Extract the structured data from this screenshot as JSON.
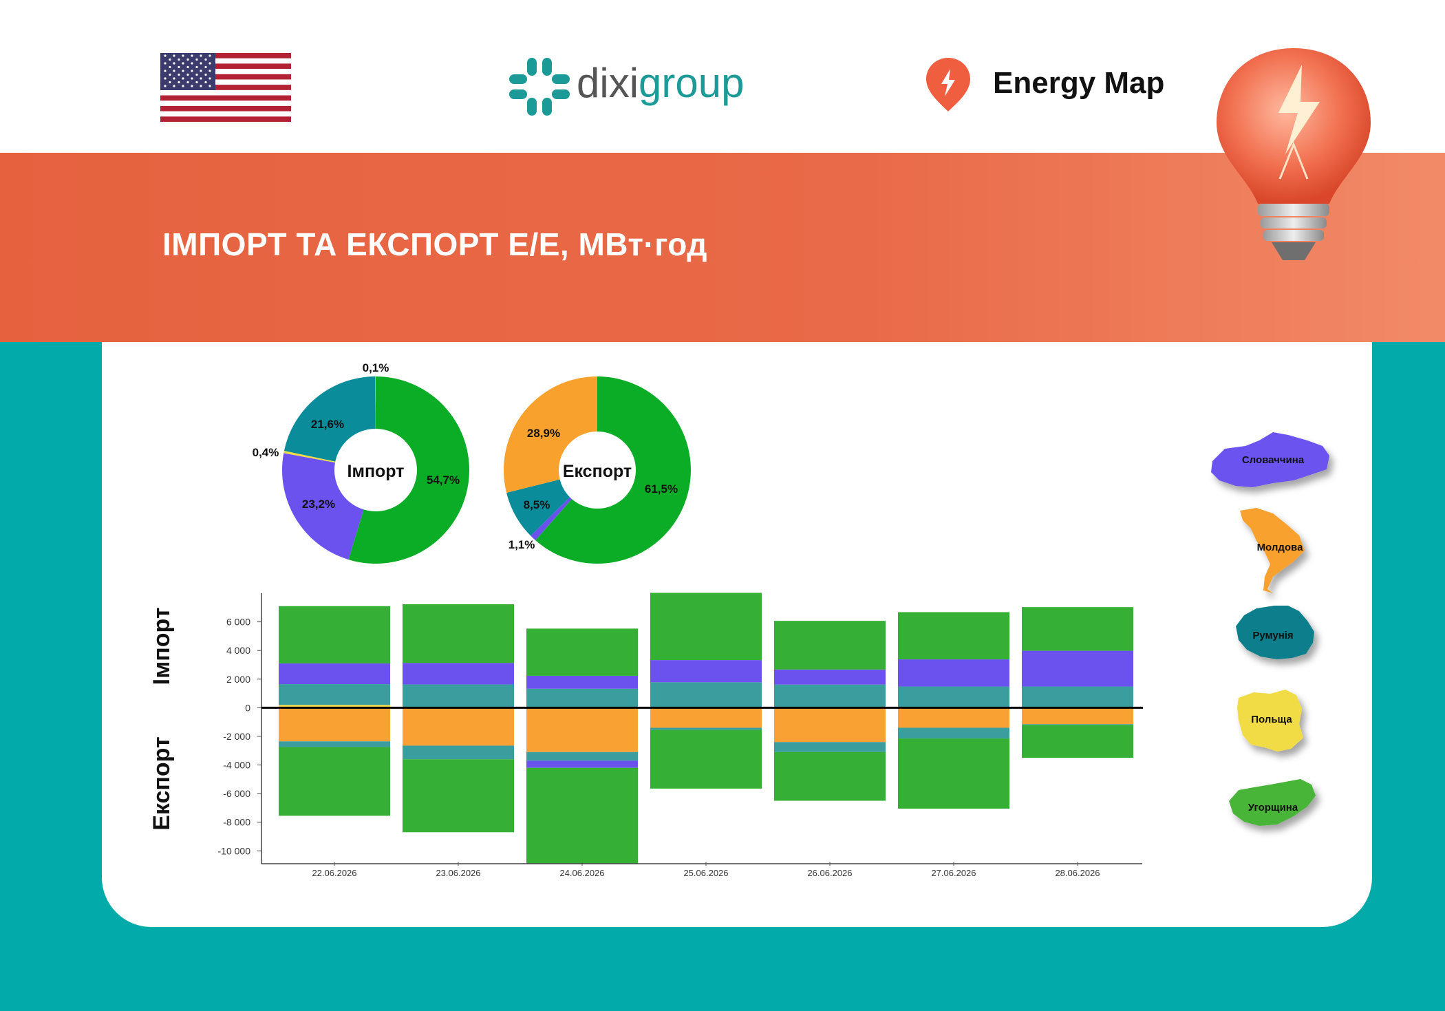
{
  "header": {
    "brand_left": "dixi",
    "brand_right": "group",
    "energy_map": "Energy Map",
    "flag": "us-flag-icon"
  },
  "banner": {
    "title": "ІМПОРТ ТА ЕКСПОРТ Е/Е, МВт·год"
  },
  "legend": {
    "items": [
      {
        "name": "Словаччина",
        "color": "#6b52ee"
      },
      {
        "name": "Молдова",
        "color": "#f9a12d"
      },
      {
        "name": "Румунія",
        "color": "#0a7f8c"
      },
      {
        "name": "Польща",
        "color": "#f2dc45"
      },
      {
        "name": "Угорщина",
        "color": "#49b538"
      }
    ]
  },
  "chart_data": [
    {
      "type": "pie",
      "title": "Імпорт",
      "slices": [
        {
          "label": "54,7%",
          "value": 54.7,
          "country": "Угорщина",
          "color": "#0bad26"
        },
        {
          "label": "23,2%",
          "value": 23.2,
          "country": "Словаччина",
          "color": "#6b52ee"
        },
        {
          "label": "0,4%",
          "value": 0.4,
          "country": "Польща",
          "color": "#f2dc45"
        },
        {
          "label": "21,6%",
          "value": 21.6,
          "country": "Румунія",
          "color": "#0a8c9a"
        },
        {
          "label": "0,1%",
          "value": 0.1,
          "country": "Молдова",
          "color": "#f9a12d"
        }
      ]
    },
    {
      "type": "pie",
      "title": "Експорт",
      "slices": [
        {
          "label": "61,5%",
          "value": 61.5,
          "country": "Угорщина",
          "color": "#0bad26"
        },
        {
          "label": "1,1%",
          "value": 1.1,
          "country": "Словаччина",
          "color": "#6b52ee"
        },
        {
          "label": "8,5%",
          "value": 8.5,
          "country": "Румунія",
          "color": "#0a8c9a"
        },
        {
          "label": "28,9%",
          "value": 28.9,
          "country": "Молдова",
          "color": "#f9a12d"
        }
      ]
    },
    {
      "type": "bar",
      "stacked": true,
      "ylabel_top": "Імпорт",
      "ylabel_bottom": "Експорт",
      "ylim": [
        -10900,
        8000
      ],
      "yticks": [
        {
          "v": 6000,
          "label": "6 000"
        },
        {
          "v": 4000,
          "label": "4 000"
        },
        {
          "v": 2000,
          "label": "2 000"
        },
        {
          "v": 0,
          "label": "0"
        },
        {
          "v": -2000,
          "label": "-2 000"
        },
        {
          "v": -4000,
          "label": "-4 000"
        },
        {
          "v": -6000,
          "label": "-6 000"
        },
        {
          "v": -8000,
          "label": "-8 000"
        },
        {
          "v": -10000,
          "label": "-10 000"
        }
      ],
      "categories": [
        "22.06.2026",
        "23.06.2026",
        "24.06.2026",
        "25.06.2026",
        "26.06.2026",
        "27.06.2026",
        "28.06.2026"
      ],
      "series": [
        {
          "name": "Польща",
          "color": "#f2dc45",
          "values": [
            200,
            30,
            30,
            30,
            20,
            30,
            30
          ]
        },
        {
          "name": "Румунія",
          "color": "#3b9e9e",
          "values": [
            1450,
            1600,
            1300,
            1750,
            1600,
            1450,
            1450
          ]
        },
        {
          "name": "Словаччина",
          "color": "#6b52ee",
          "values": [
            1450,
            1500,
            900,
            1550,
            1050,
            1900,
            2500
          ]
        },
        {
          "name": "Угорщина",
          "color": "#36b034",
          "values": [
            4000,
            4100,
            3300,
            4700,
            3400,
            3300,
            3050
          ]
        },
        {
          "name": "Молдова",
          "color": "#f9a133",
          "values": [
            -2350,
            -2650,
            -3100,
            -1400,
            -2400,
            -1400,
            -1150
          ]
        },
        {
          "name": "Румунія",
          "color": "#3b9e9e",
          "values": [
            -400,
            -950,
            -600,
            -150,
            -700,
            -750,
            -50
          ]
        },
        {
          "name": "Словаччина",
          "color": "#6b52ee",
          "values": [
            0,
            0,
            -500,
            0,
            0,
            0,
            0
          ]
        },
        {
          "name": "Угорщина",
          "color": "#36b034",
          "values": [
            -4800,
            -5100,
            -6700,
            -4100,
            -3400,
            -4900,
            -2300
          ]
        }
      ]
    }
  ]
}
